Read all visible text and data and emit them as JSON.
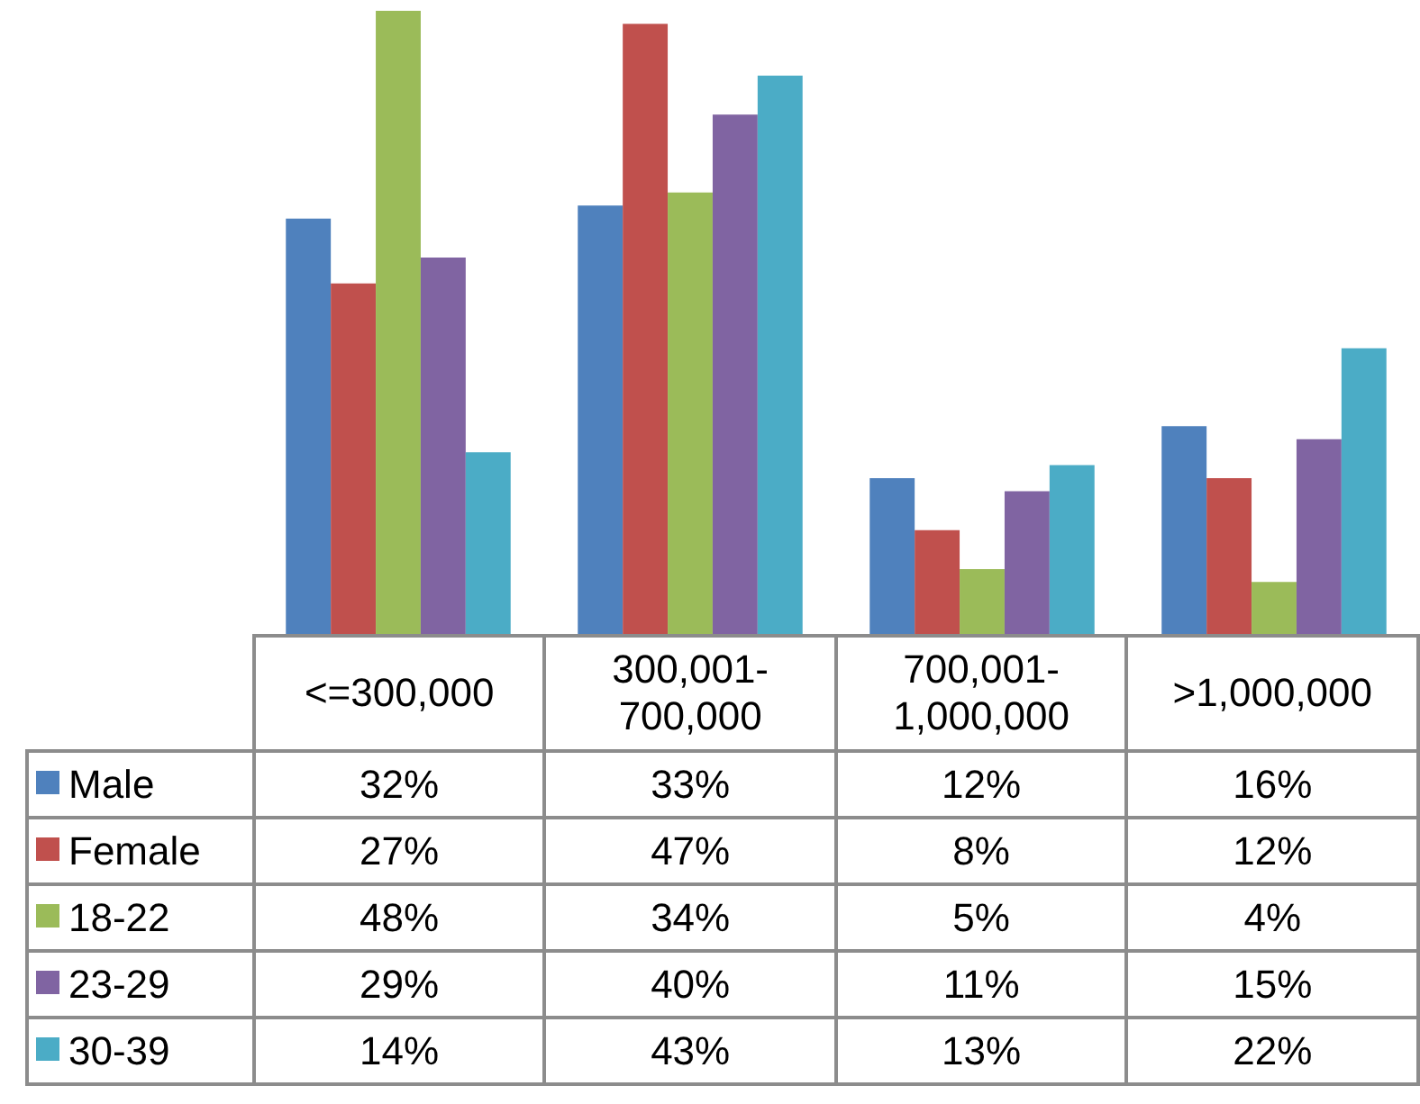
{
  "chart_data": {
    "type": "bar",
    "categories": [
      "<=300,000",
      "300,001-700,000",
      "700,001-1,000,000",
      ">1,000,000"
    ],
    "series": [
      {
        "name": "Male",
        "color": "#4f81bd",
        "values": [
          32,
          33,
          12,
          16
        ],
        "value_labels": [
          "32%",
          "33%",
          "12%",
          "16%"
        ]
      },
      {
        "name": "Female",
        "color": "#c0504d",
        "values": [
          27,
          47,
          8,
          12
        ],
        "value_labels": [
          "27%",
          "47%",
          "8%",
          "12%"
        ]
      },
      {
        "name": "18-22",
        "color": "#9bbb59",
        "values": [
          48,
          34,
          5,
          4
        ],
        "value_labels": [
          "48%",
          "34%",
          "5%",
          "4%"
        ]
      },
      {
        "name": "23-29",
        "color": "#8064a2",
        "values": [
          29,
          40,
          11,
          15
        ],
        "value_labels": [
          "29%",
          "40%",
          "11%",
          "15%"
        ]
      },
      {
        "name": "30-39",
        "color": "#4bacc6",
        "values": [
          14,
          43,
          13,
          22
        ],
        "value_labels": [
          "14%",
          "43%",
          "13%",
          "22%"
        ]
      }
    ],
    "legend": "bottom",
    "grid": false
  }
}
